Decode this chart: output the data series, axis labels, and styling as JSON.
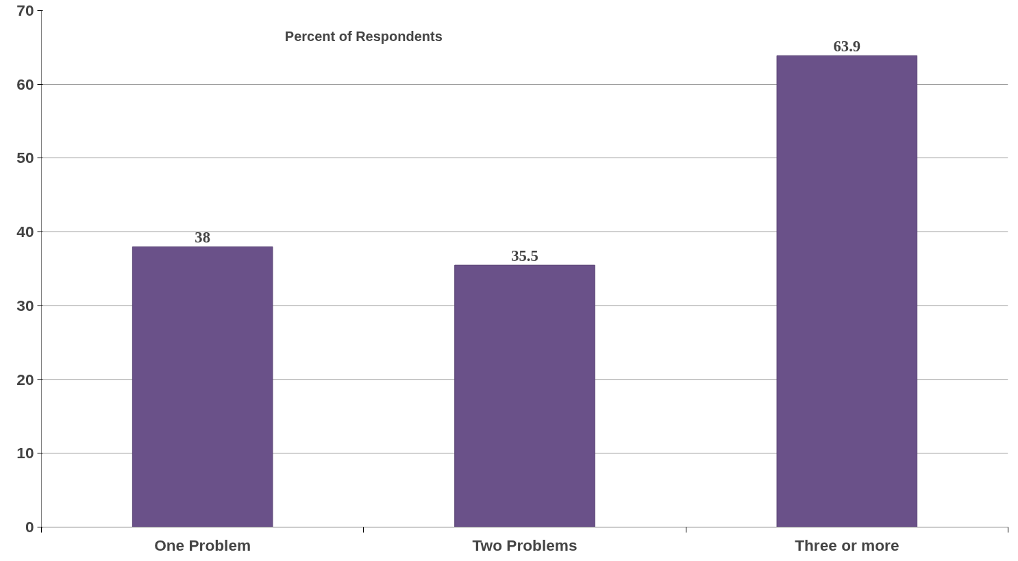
{
  "chart_data": {
    "type": "bar",
    "title": "Percent of Respondents",
    "categories": [
      "One Problem",
      "Two Problems",
      "Three or more"
    ],
    "values": [
      38,
      35.5,
      63.9
    ],
    "color": "#6a5189",
    "ylim": [
      0,
      70
    ],
    "yticks": [
      0,
      10,
      20,
      30,
      40,
      50,
      60,
      70
    ],
    "grid": "y",
    "data_labels": true
  }
}
